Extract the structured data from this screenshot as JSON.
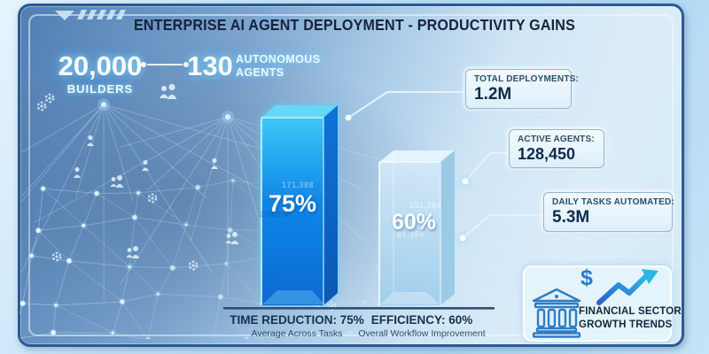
{
  "header": {
    "title": "ENTERPRISE AI AGENT DEPLOYMENT - PRODUCTIVITY GAINS"
  },
  "stats": {
    "builders_value": "20,000",
    "builders_label": "BUILDERS",
    "agents_value": "130",
    "agents_label_line1": "AUTONOMOUS",
    "agents_label_line2": "AGENTS"
  },
  "chart_data": {
    "type": "bar",
    "categories": [
      "Time Reduction",
      "Efficiency"
    ],
    "values": [
      75,
      60
    ],
    "unit": "percent",
    "ylim": [
      0,
      100
    ],
    "title": "Enterprise AI Agent Deployment - Productivity Gains",
    "bars": [
      {
        "value_label": "75%",
        "caption_title": "TIME REDUCTION: 75%",
        "caption_subtitle": "Average Across Tasks",
        "fill": "#0d7ee4",
        "ghost_top": "171,388",
        "ghost_bottom": "206,258"
      },
      {
        "value_label": "60%",
        "caption_title": "EFFICIENCY: 60%",
        "caption_subtitle": "Overall Workflow Improvement",
        "fill": "#bfe0f4",
        "ghost_top": "231,284",
        "ghost_bottom": "81,394"
      }
    ]
  },
  "callouts": [
    {
      "label": "TOTAL DEPLOYMENTS:",
      "value": "1.2M"
    },
    {
      "label": "ACTIVE AGENTS:",
      "value": "128,450"
    },
    {
      "label": "DAILY TASKS AUTOMATED:",
      "value": "5.3M"
    }
  ],
  "badge": {
    "dollar": "$",
    "line1": "FINANCIAL SECTOR",
    "line2": "GROWTH TRENDS"
  },
  "icons": [
    "bank-icon",
    "dollar-icon",
    "growth-arrow-icon",
    "people-icon",
    "gear-icon",
    "network-node"
  ],
  "colors": {
    "accent_blue": "#0d7ee4",
    "navy_text": "#16233f",
    "glow_cyan": "#7fd8ff",
    "panel_border": "#2a5a92",
    "bar2_fill": "#bfe0f4"
  }
}
